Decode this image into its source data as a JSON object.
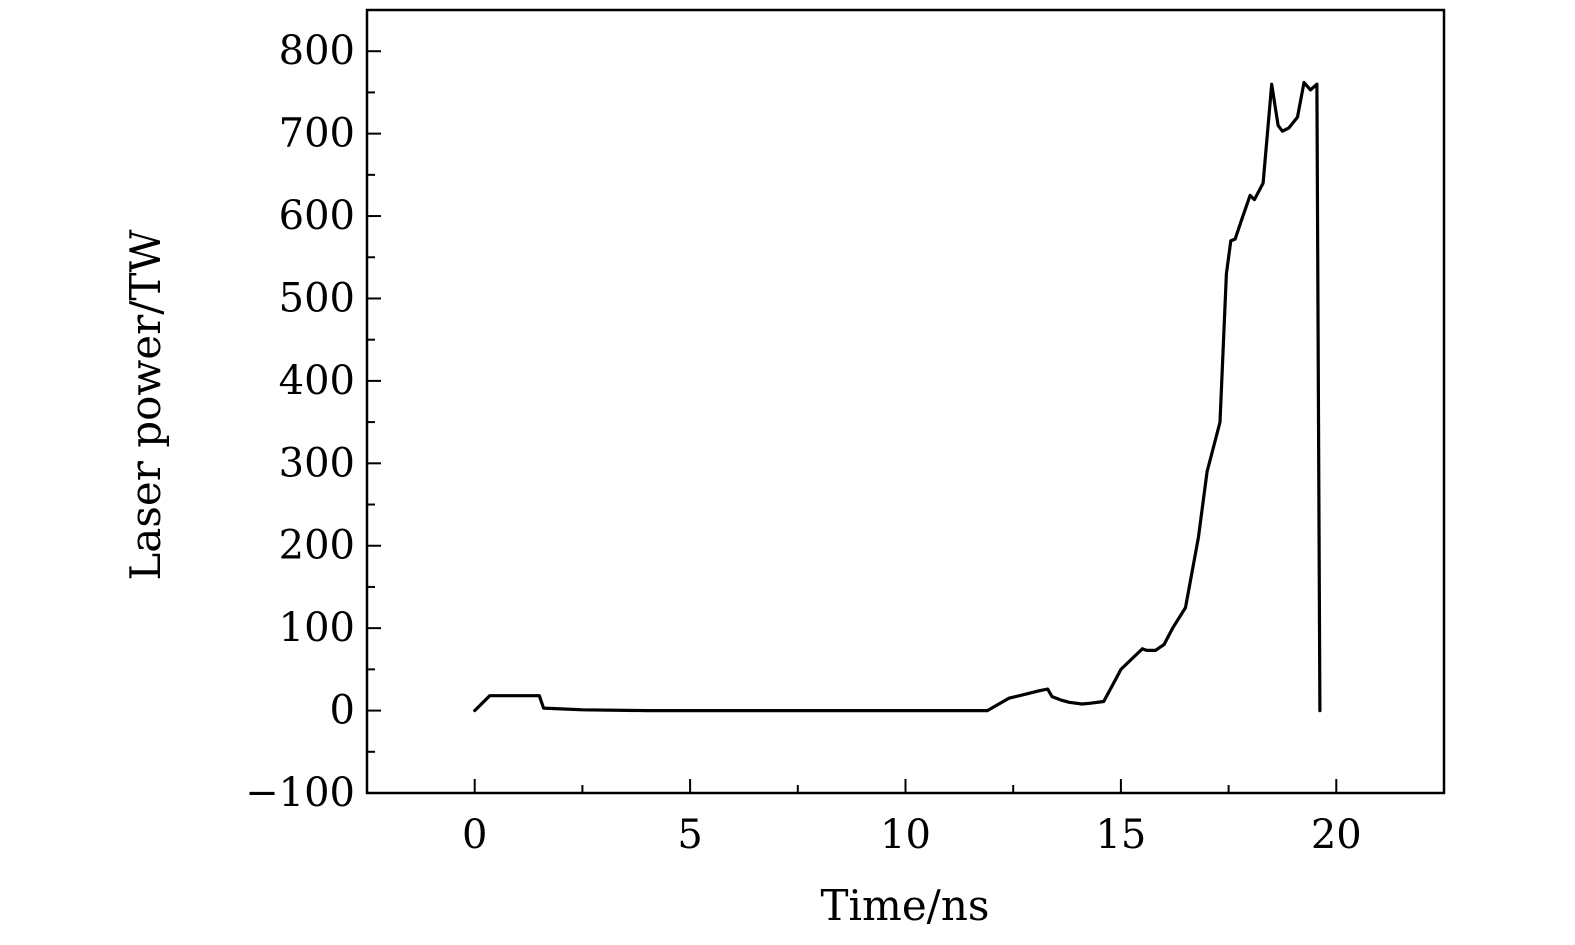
{
  "chart_data": {
    "type": "line",
    "title": "",
    "xlabel": "Time/ns",
    "ylabel": "Laser power/TW",
    "xlim": [
      -2.5,
      22.5
    ],
    "ylim": [
      -100,
      850
    ],
    "x_ticks": [
      0,
      5,
      10,
      15,
      20
    ],
    "x_tick_labels": [
      "0",
      "5",
      "10",
      "15",
      "20"
    ],
    "x_minor_ticks": [
      2.5,
      7.5,
      12.5,
      17.5
    ],
    "y_ticks": [
      -100,
      0,
      100,
      200,
      300,
      400,
      500,
      600,
      700,
      800
    ],
    "y_tick_labels": [
      "−100",
      "0",
      "100",
      "200",
      "300",
      "400",
      "500",
      "600",
      "700",
      "800"
    ],
    "y_minor_ticks": [
      -50,
      50,
      150,
      250,
      350,
      450,
      550,
      650,
      750
    ],
    "grid": false,
    "series": [
      {
        "x": [
          0,
          0.35,
          1.0,
          1.5,
          1.6,
          2.0,
          2.5,
          4.0,
          11.9,
          12.0,
          12.4,
          12.8,
          13.1,
          13.3,
          13.4,
          13.6,
          13.8,
          14.1,
          14.3,
          14.6,
          14.9,
          15.0,
          15.2,
          15.4,
          15.5,
          15.6,
          15.8,
          16.0,
          16.2,
          16.5,
          16.8,
          17.0,
          17.3,
          17.45,
          17.55,
          17.65,
          17.8,
          18.0,
          18.1,
          18.3,
          18.5,
          18.65,
          18.75,
          18.9,
          19.1,
          19.25,
          19.4,
          19.55,
          19.62
        ],
        "y": [
          0,
          18,
          18,
          18,
          3,
          2,
          1,
          0,
          0,
          3,
          15,
          20,
          24,
          26,
          17,
          13,
          10,
          8,
          9,
          11,
          40,
          50,
          60,
          70,
          75,
          73,
          73,
          80,
          100,
          125,
          210,
          290,
          350,
          530,
          570,
          572,
          595,
          625,
          620,
          640,
          760,
          710,
          703,
          707,
          720,
          762,
          753,
          760,
          0
        ]
      }
    ]
  }
}
